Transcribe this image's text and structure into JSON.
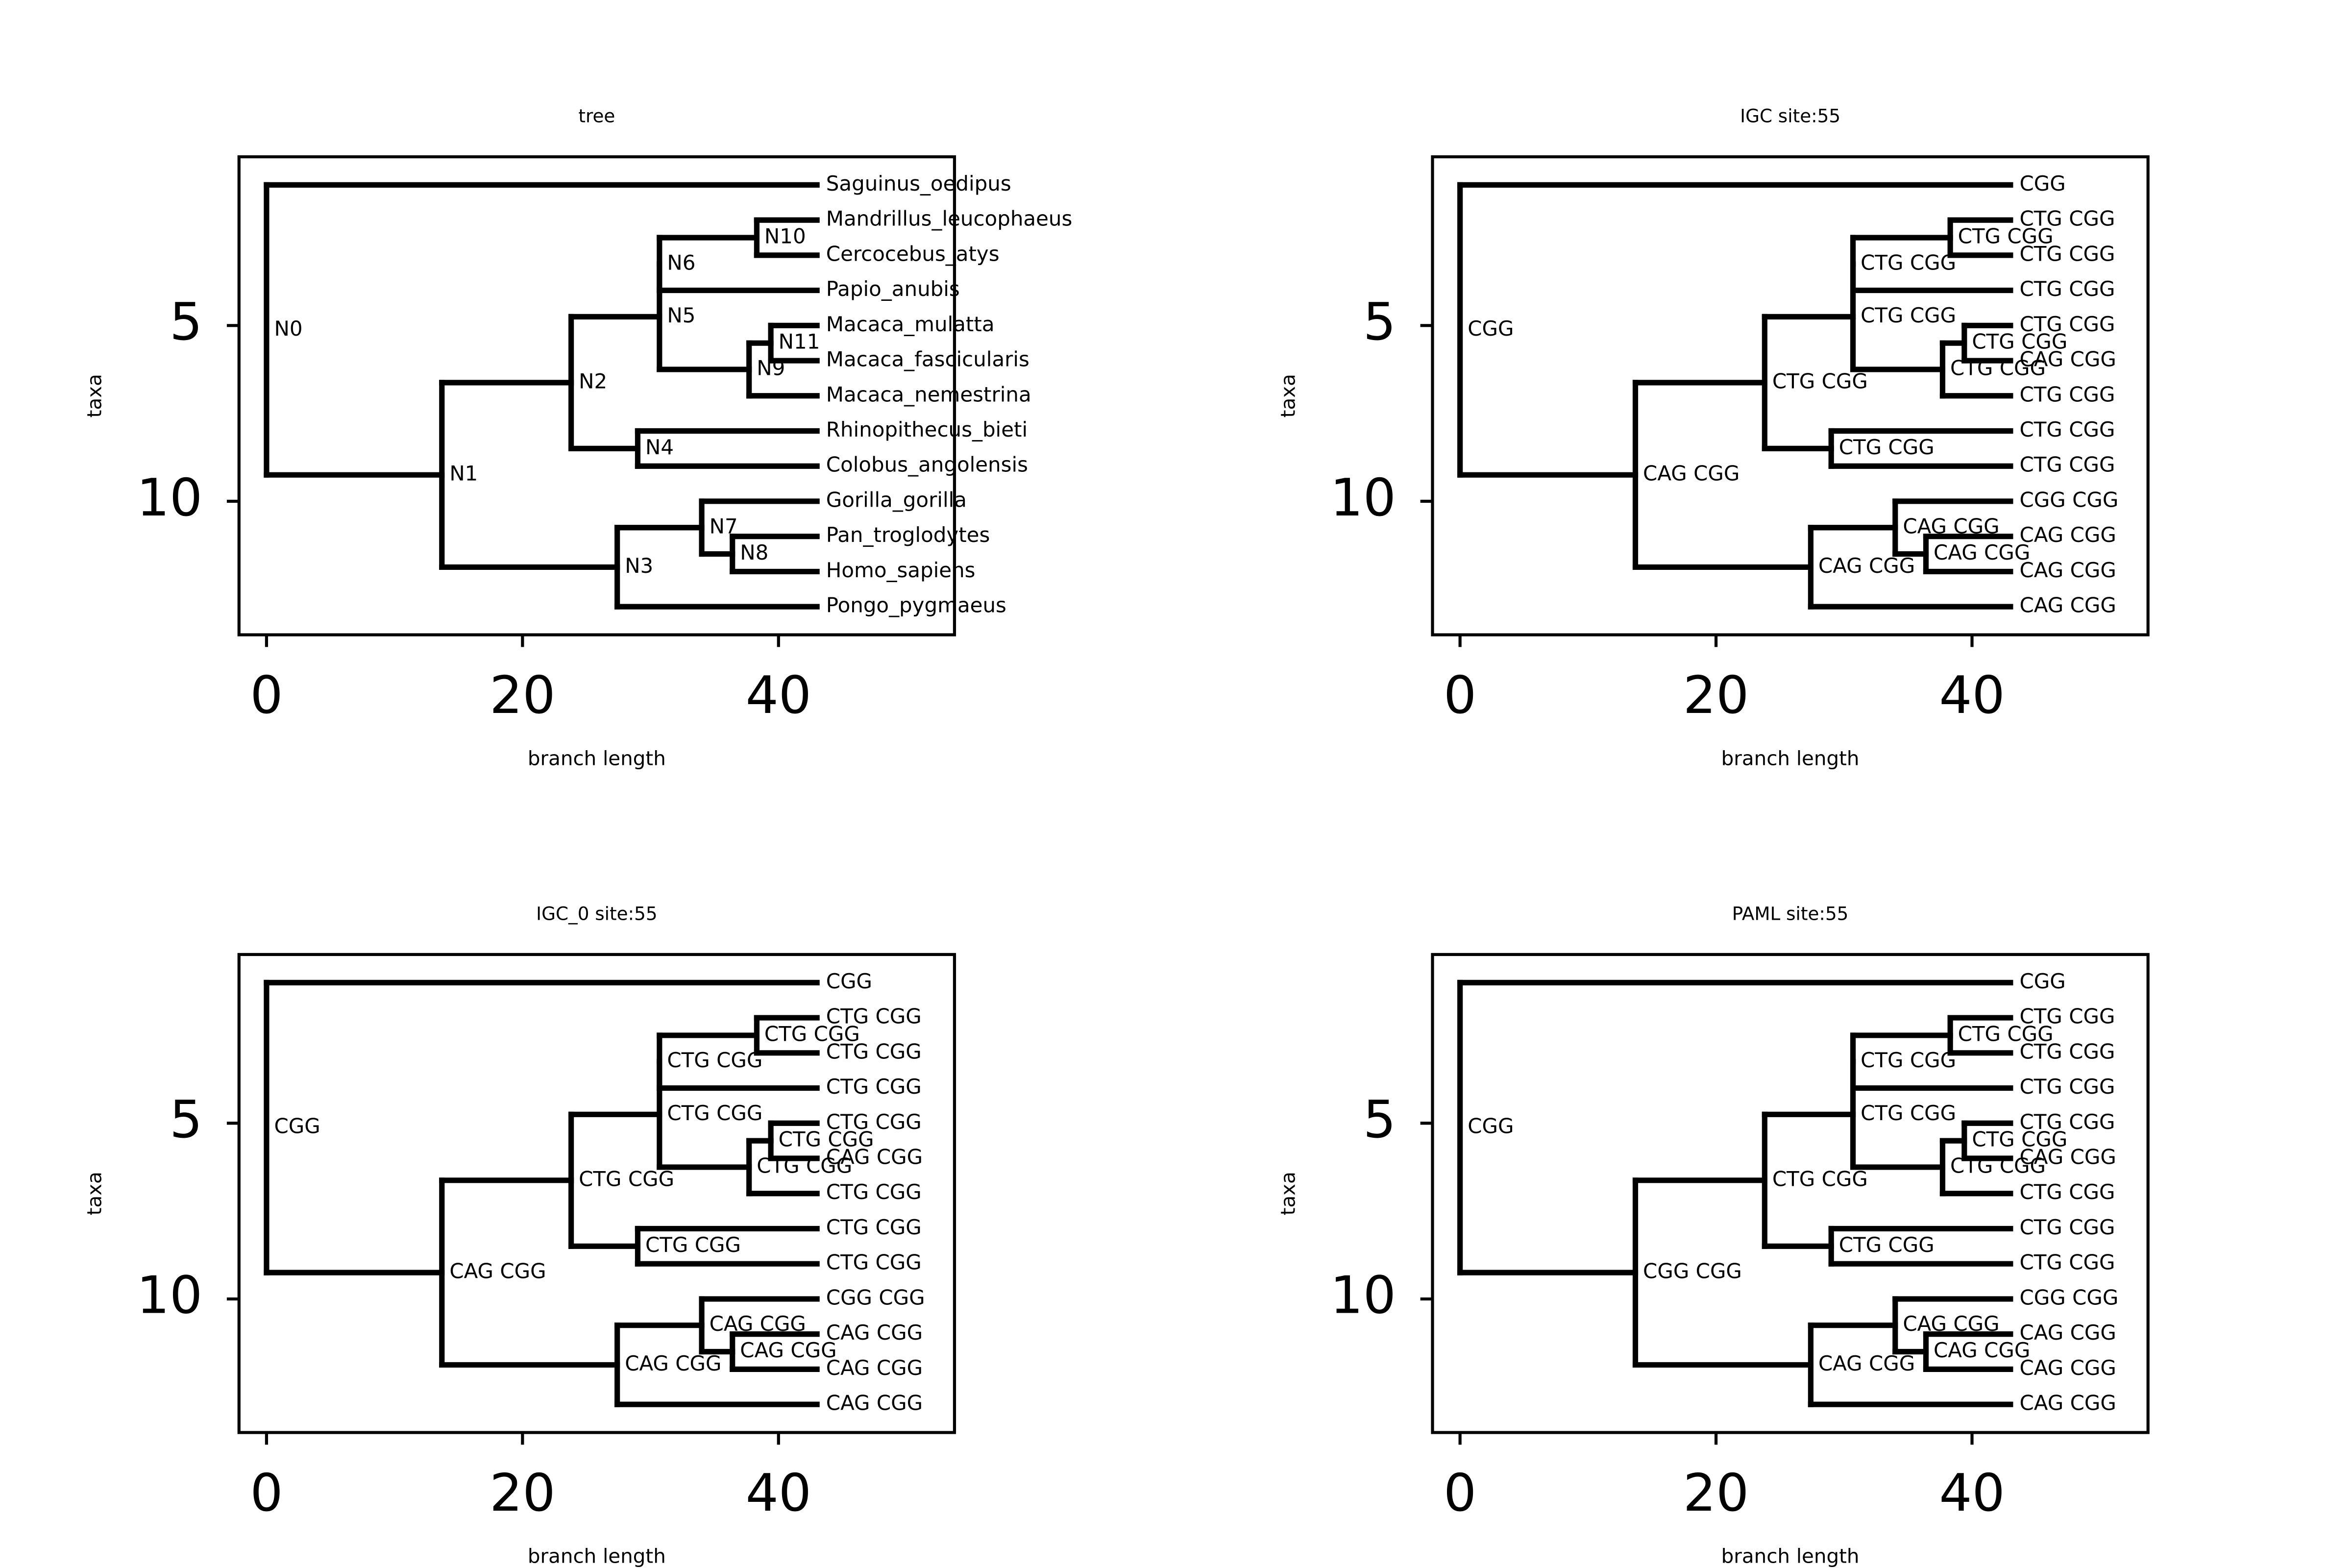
{
  "chart_data": [
    {
      "type": "tree",
      "title": "tree",
      "xlabel": "branch length",
      "ylabel": "taxa",
      "xlim": [
        -2.15,
        53.75
      ],
      "xticks": [
        0,
        20,
        40
      ],
      "ylim": [
        13.8,
        0.2
      ],
      "yticks": [
        5,
        10
      ],
      "tree": {
        "label": "N0",
        "x": 0,
        "children": [
          {
            "label": "Saguinus_oedipus",
            "x": 43
          },
          {
            "label": "N1",
            "x": 13.7,
            "children": [
              {
                "label": "N2",
                "x": 23.8,
                "children": [
                  {
                    "label": "N5",
                    "x": 30.7,
                    "children": [
                      {
                        "label": "N6",
                        "x": 30.7,
                        "children": [
                          {
                            "label": "N10",
                            "x": 38.3,
                            "children": [
                              {
                                "label": "Mandrillus_leucophaeus",
                                "x": 43
                              },
                              {
                                "label": "Cercocebus_atys",
                                "x": 43
                              }
                            ]
                          },
                          {
                            "label": "Papio_anubis",
                            "x": 43
                          }
                        ]
                      },
                      {
                        "label": "N9",
                        "x": 37.7,
                        "children": [
                          {
                            "label": "N11",
                            "x": 39.4,
                            "children": [
                              {
                                "label": "Macaca_mulatta",
                                "x": 43
                              },
                              {
                                "label": "Macaca_fascicularis",
                                "x": 43
                              }
                            ]
                          },
                          {
                            "label": "Macaca_nemestrina",
                            "x": 43
                          }
                        ]
                      }
                    ]
                  },
                  {
                    "label": "N4",
                    "x": 29.0,
                    "children": [
                      {
                        "label": "Rhinopithecus_bieti",
                        "x": 43
                      },
                      {
                        "label": "Colobus_angolensis",
                        "x": 43
                      }
                    ]
                  }
                ]
              },
              {
                "label": "N3",
                "x": 27.4,
                "children": [
                  {
                    "label": "N7",
                    "x": 34.0,
                    "children": [
                      {
                        "label": "Gorilla_gorilla",
                        "x": 43
                      },
                      {
                        "label": "N8",
                        "x": 36.4,
                        "children": [
                          {
                            "label": "Pan_troglodytes",
                            "x": 43
                          },
                          {
                            "label": "Homo_sapiens",
                            "x": 43
                          }
                        ]
                      }
                    ]
                  },
                  {
                    "label": "Pongo_pygmaeus",
                    "x": 43
                  }
                ]
              }
            ]
          }
        ]
      }
    },
    {
      "type": "tree",
      "title": "IGC site:55",
      "xlabel": "branch length",
      "ylabel": "taxa",
      "xlim": [
        -2.15,
        53.75
      ],
      "xticks": [
        0,
        20,
        40
      ],
      "ylim": [
        13.8,
        0.2
      ],
      "yticks": [
        5,
        10
      ],
      "tree": {
        "label": "CGG",
        "x": 0,
        "children": [
          {
            "label": "CGG",
            "x": 43
          },
          {
            "label": "CAG CGG",
            "x": 13.7,
            "children": [
              {
                "label": "CTG CGG",
                "x": 23.8,
                "children": [
                  {
                    "label": "CTG CGG",
                    "x": 30.7,
                    "children": [
                      {
                        "label": "CTG CGG",
                        "x": 30.7,
                        "children": [
                          {
                            "label": "CTG CGG",
                            "x": 38.3,
                            "children": [
                              {
                                "label": "CTG CGG",
                                "x": 43
                              },
                              {
                                "label": "CTG CGG",
                                "x": 43
                              }
                            ]
                          },
                          {
                            "label": "CTG CGG",
                            "x": 43
                          }
                        ]
                      },
                      {
                        "label": "CTG CGG",
                        "x": 37.7,
                        "children": [
                          {
                            "label": "CTG CGG",
                            "x": 39.4,
                            "children": [
                              {
                                "label": "CTG CGG",
                                "x": 43
                              },
                              {
                                "label": "CAG CGG",
                                "x": 43
                              }
                            ]
                          },
                          {
                            "label": "CTG CGG",
                            "x": 43
                          }
                        ]
                      }
                    ]
                  },
                  {
                    "label": "CTG CGG",
                    "x": 29.0,
                    "children": [
                      {
                        "label": "CTG CGG",
                        "x": 43
                      },
                      {
                        "label": "CTG CGG",
                        "x": 43
                      }
                    ]
                  }
                ]
              },
              {
                "label": "CAG CGG",
                "x": 27.4,
                "children": [
                  {
                    "label": "CAG CGG",
                    "x": 34.0,
                    "children": [
                      {
                        "label": "CGG CGG",
                        "x": 43
                      },
                      {
                        "label": "CAG CGG",
                        "x": 36.4,
                        "children": [
                          {
                            "label": "CAG CGG",
                            "x": 43
                          },
                          {
                            "label": "CAG CGG",
                            "x": 43
                          }
                        ]
                      }
                    ]
                  },
                  {
                    "label": "CAG CGG",
                    "x": 43
                  }
                ]
              }
            ]
          }
        ]
      }
    },
    {
      "type": "tree",
      "title": "IGC_0 site:55",
      "xlabel": "branch length",
      "ylabel": "taxa",
      "xlim": [
        -2.15,
        53.75
      ],
      "xticks": [
        0,
        20,
        40
      ],
      "ylim": [
        13.8,
        0.2
      ],
      "yticks": [
        5,
        10
      ],
      "tree": {
        "label": "CGG",
        "x": 0,
        "children": [
          {
            "label": "CGG",
            "x": 43
          },
          {
            "label": "CAG CGG",
            "x": 13.7,
            "children": [
              {
                "label": "CTG CGG",
                "x": 23.8,
                "children": [
                  {
                    "label": "CTG CGG",
                    "x": 30.7,
                    "children": [
                      {
                        "label": "CTG CGG",
                        "x": 30.7,
                        "children": [
                          {
                            "label": "CTG CGG",
                            "x": 38.3,
                            "children": [
                              {
                                "label": "CTG CGG",
                                "x": 43
                              },
                              {
                                "label": "CTG CGG",
                                "x": 43
                              }
                            ]
                          },
                          {
                            "label": "CTG CGG",
                            "x": 43
                          }
                        ]
                      },
                      {
                        "label": "CTG CGG",
                        "x": 37.7,
                        "children": [
                          {
                            "label": "CTG CGG",
                            "x": 39.4,
                            "children": [
                              {
                                "label": "CTG CGG",
                                "x": 43
                              },
                              {
                                "label": "CAG CGG",
                                "x": 43
                              }
                            ]
                          },
                          {
                            "label": "CTG CGG",
                            "x": 43
                          }
                        ]
                      }
                    ]
                  },
                  {
                    "label": "CTG CGG",
                    "x": 29.0,
                    "children": [
                      {
                        "label": "CTG CGG",
                        "x": 43
                      },
                      {
                        "label": "CTG CGG",
                        "x": 43
                      }
                    ]
                  }
                ]
              },
              {
                "label": "CAG CGG",
                "x": 27.4,
                "children": [
                  {
                    "label": "CAG CGG",
                    "x": 34.0,
                    "children": [
                      {
                        "label": "CGG CGG",
                        "x": 43
                      },
                      {
                        "label": "CAG CGG",
                        "x": 36.4,
                        "children": [
                          {
                            "label": "CAG CGG",
                            "x": 43
                          },
                          {
                            "label": "CAG CGG",
                            "x": 43
                          }
                        ]
                      }
                    ]
                  },
                  {
                    "label": "CAG CGG",
                    "x": 43
                  }
                ]
              }
            ]
          }
        ]
      }
    },
    {
      "type": "tree",
      "title": "PAML site:55",
      "xlabel": "branch length",
      "ylabel": "taxa",
      "xlim": [
        -2.15,
        53.75
      ],
      "xticks": [
        0,
        20,
        40
      ],
      "ylim": [
        13.8,
        0.2
      ],
      "yticks": [
        5,
        10
      ],
      "tree": {
        "label": "CGG",
        "x": 0,
        "children": [
          {
            "label": "CGG",
            "x": 43
          },
          {
            "label": "CGG CGG",
            "x": 13.7,
            "children": [
              {
                "label": "CTG CGG",
                "x": 23.8,
                "children": [
                  {
                    "label": "CTG CGG",
                    "x": 30.7,
                    "children": [
                      {
                        "label": "CTG CGG",
                        "x": 30.7,
                        "children": [
                          {
                            "label": "CTG CGG",
                            "x": 38.3,
                            "children": [
                              {
                                "label": "CTG CGG",
                                "x": 43
                              },
                              {
                                "label": "CTG CGG",
                                "x": 43
                              }
                            ]
                          },
                          {
                            "label": "CTG CGG",
                            "x": 43
                          }
                        ]
                      },
                      {
                        "label": "CTG CGG",
                        "x": 37.7,
                        "children": [
                          {
                            "label": "CTG CGG",
                            "x": 39.4,
                            "children": [
                              {
                                "label": "CTG CGG",
                                "x": 43
                              },
                              {
                                "label": "CAG CGG",
                                "x": 43
                              }
                            ]
                          },
                          {
                            "label": "CTG CGG",
                            "x": 43
                          }
                        ]
                      }
                    ]
                  },
                  {
                    "label": "CTG CGG",
                    "x": 29.0,
                    "children": [
                      {
                        "label": "CTG CGG",
                        "x": 43
                      },
                      {
                        "label": "CTG CGG",
                        "x": 43
                      }
                    ]
                  }
                ]
              },
              {
                "label": "CAG CGG",
                "x": 27.4,
                "children": [
                  {
                    "label": "CAG CGG",
                    "x": 34.0,
                    "children": [
                      {
                        "label": "CGG CGG",
                        "x": 43
                      },
                      {
                        "label": "CAG CGG",
                        "x": 36.4,
                        "children": [
                          {
                            "label": "CAG CGG",
                            "x": 43
                          },
                          {
                            "label": "CAG CGG",
                            "x": 43
                          }
                        ]
                      }
                    ]
                  },
                  {
                    "label": "CAG CGG",
                    "x": 43
                  }
                ]
              }
            ]
          }
        ]
      }
    }
  ]
}
